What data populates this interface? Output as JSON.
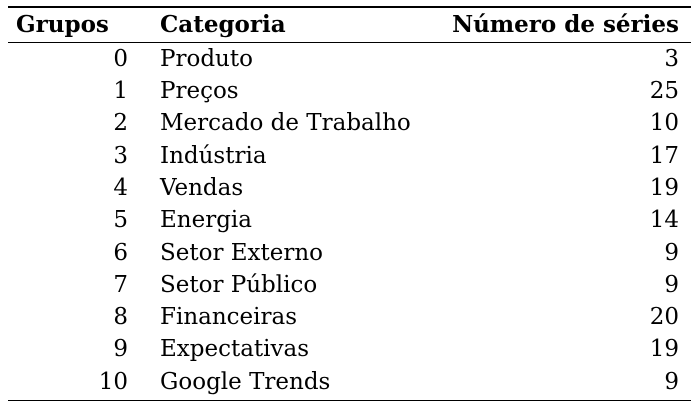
{
  "table": {
    "headers": [
      "Grupos",
      "Categoria",
      "Número de séries"
    ],
    "rows": [
      {
        "grupo": "0",
        "categoria": "Produto",
        "numero": "3"
      },
      {
        "grupo": "1",
        "categoria": "Preços",
        "numero": "25"
      },
      {
        "grupo": "2",
        "categoria": "Mercado de Trabalho",
        "numero": "10"
      },
      {
        "grupo": "3",
        "categoria": "Indústria",
        "numero": "17"
      },
      {
        "grupo": "4",
        "categoria": "Vendas",
        "numero": "19"
      },
      {
        "grupo": "5",
        "categoria": "Energia",
        "numero": "14"
      },
      {
        "grupo": "6",
        "categoria": "Setor Externo",
        "numero": "9"
      },
      {
        "grupo": "7",
        "categoria": "Setor Público",
        "numero": "9"
      },
      {
        "grupo": "8",
        "categoria": "Financeiras",
        "numero": "20"
      },
      {
        "grupo": "9",
        "categoria": "Expectativas",
        "numero": "19"
      },
      {
        "grupo": "10",
        "categoria": "Google Trends",
        "numero": "9"
      }
    ]
  }
}
